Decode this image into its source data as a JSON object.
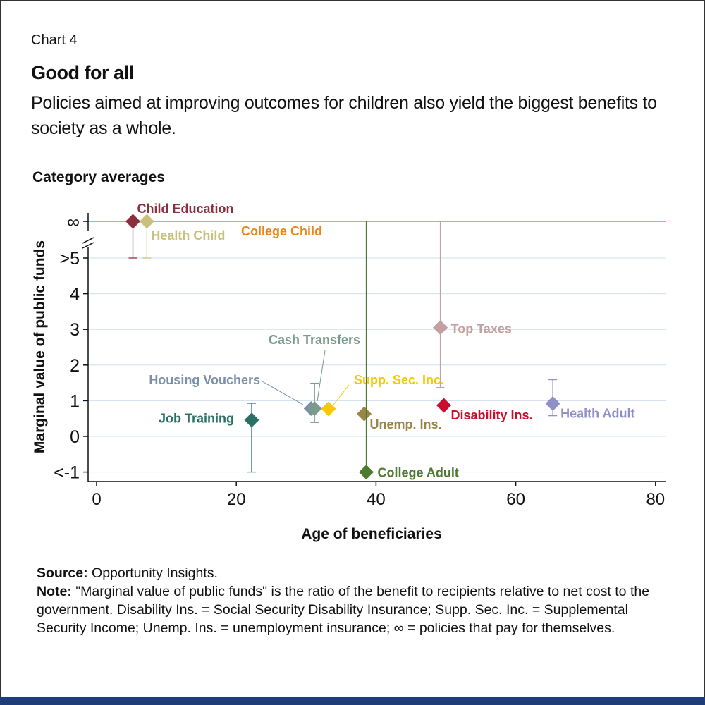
{
  "header": {
    "chart_number": "Chart 4",
    "title": "Good for all",
    "subtitle": "Policies aimed at improving outcomes for children also yield the biggest benefits to society as a whole.",
    "section_heading": "Category averages"
  },
  "footer": {
    "source_label": "Source:",
    "source_text": " Opportunity Insights.",
    "note_label": "Note:",
    "note_text": " \"Marginal value of public funds\" is the ratio of the benefit to recipients relative to net cost to the government. Disability Ins. = Social Security Disability Insurance; Supp. Sec. Inc. = Supplemental Security Income; Unemp. Ins. = unemployment insurance; ∞ = policies that pay for themselves."
  },
  "chart_data": {
    "type": "scatter",
    "xlabel": "Age of beneficiaries",
    "ylabel": "Marginal value of public funds",
    "xlim": [
      -1,
      82
    ],
    "xticks": [
      0,
      20,
      40,
      60,
      80
    ],
    "yticks": [
      {
        "value": 7,
        "label": "∞"
      },
      {
        "value": 5,
        "label": ">5"
      },
      {
        "value": 4,
        "label": "4"
      },
      {
        "value": 3,
        "label": "3"
      },
      {
        "value": 2,
        "label": "2"
      },
      {
        "value": 1,
        "label": "1"
      },
      {
        "value": 0,
        "label": "0"
      },
      {
        "value": -1,
        "label": "<-1"
      }
    ],
    "y_axis_break": "between >5 and ∞",
    "grid": true,
    "points": [
      {
        "name": "Child Education",
        "x": 5.2,
        "y": "∞",
        "err_low": 5,
        "err_high": "∞",
        "color": "#8b3040"
      },
      {
        "name": "Health Child",
        "x": 7.2,
        "y": "∞",
        "err_low": 5,
        "err_high": "∞",
        "color": "#c9c07e"
      },
      {
        "name": "College Child",
        "x": null,
        "y": "∞",
        "color": "#e8861a"
      },
      {
        "name": "Job Training",
        "x": 22.2,
        "y": 0.46,
        "err_low": -1,
        "err_high": 0.93,
        "color": "#2a7065"
      },
      {
        "name": "Housing Vouchers",
        "x": 30.7,
        "y": 0.78,
        "color": "#7a90a8"
      },
      {
        "name": "Cash Transfers",
        "x": 31.2,
        "y": 0.78,
        "err_low": 0.39,
        "err_high": 1.49,
        "color": "#7a9a8a"
      },
      {
        "name": "Supp. Sec. Inc.",
        "x": 33.2,
        "y": 0.77,
        "color": "#f5c800"
      },
      {
        "name": "Unemp. Ins.",
        "x": 38.3,
        "y": 0.63,
        "color": "#9a8548"
      },
      {
        "name": "College Adult",
        "x": 38.6,
        "y": -1,
        "err_low": -1,
        "err_high": "∞",
        "color": "#4e7a30"
      },
      {
        "name": "Top Taxes",
        "x": 49.2,
        "y": 3.05,
        "err_low": 1.37,
        "err_high": "∞",
        "color": "#c4a0a0"
      },
      {
        "name": "Disability Ins.",
        "x": 49.7,
        "y": 0.87,
        "color": "#c8102e"
      },
      {
        "name": "Health Adult",
        "x": 65.3,
        "y": 0.92,
        "err_low": 0.58,
        "err_high": 1.59,
        "color": "#9090c8"
      }
    ],
    "colors": {
      "infinity_line": "#3a9ac8",
      "gridline": "#cfe0ee",
      "axis": "#111111"
    }
  }
}
